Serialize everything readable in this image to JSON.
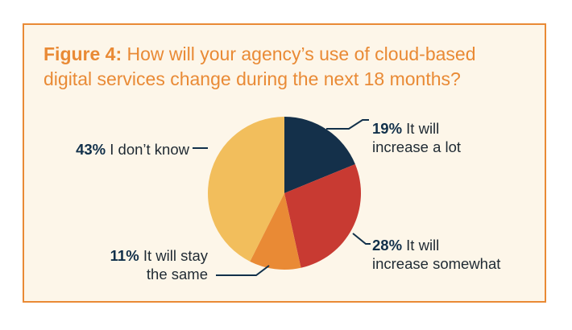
{
  "figure": {
    "label": "Figure 4:",
    "question": "How will your agency’s use of cloud-based digital services change during the next 18 months?"
  },
  "colors": {
    "frame": "#e98a35",
    "background": "#fdf6e9",
    "title": "#e98a35",
    "leader": "#11304a"
  },
  "chart_data": {
    "type": "pie",
    "title": "Figure 4: How will your agency’s use of cloud-based digital services change during the next 18 months?",
    "start_angle_deg": 0,
    "direction": "clockwise",
    "slices": [
      {
        "value": 19,
        "pct_label": "19%",
        "line1": "It will",
        "line2": "increase a lot",
        "color": "#14304a"
      },
      {
        "value": 28,
        "pct_label": "28%",
        "line1": "It will",
        "line2": "increase somewhat",
        "color": "#c83a32"
      },
      {
        "value": 11,
        "pct_label": "11%",
        "line1": "It will stay",
        "line2": "the same",
        "color": "#e98a35"
      },
      {
        "value": 43,
        "pct_label": "43%",
        "line1": "I don’t know",
        "line2": "",
        "color": "#f2be5c"
      }
    ]
  }
}
